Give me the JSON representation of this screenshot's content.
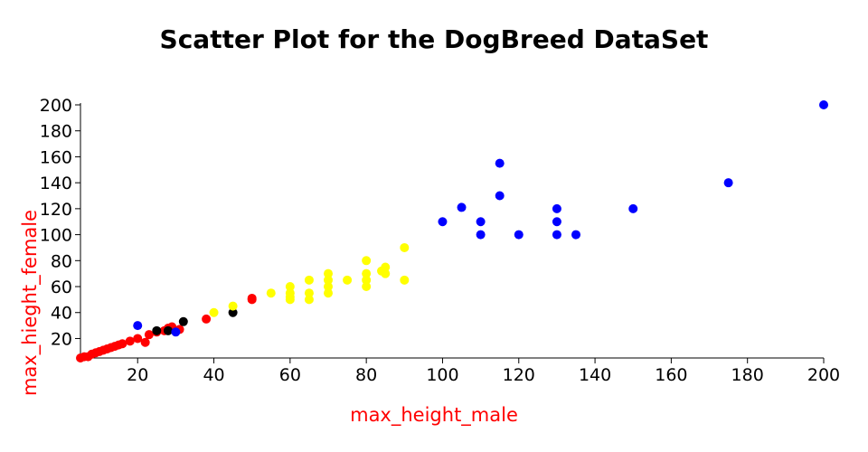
{
  "chart_data": {
    "type": "scatter",
    "title": "Scatter Plot for the DogBreed DataSet",
    "xlabel": "max_height_male",
    "ylabel": "max_hieght_female",
    "label_color": "#ff0000",
    "xlim": [
      5,
      200
    ],
    "ylim": [
      5,
      200
    ],
    "xticks": [
      20,
      40,
      60,
      80,
      100,
      120,
      140,
      160,
      180,
      200
    ],
    "yticks": [
      20,
      40,
      60,
      80,
      100,
      120,
      140,
      160,
      180,
      200
    ],
    "series": [
      {
        "name": "red",
        "color": "#ff0000",
        "points": [
          [
            5,
            5
          ],
          [
            6,
            6
          ],
          [
            7,
            6
          ],
          [
            8,
            8
          ],
          [
            9,
            9
          ],
          [
            10,
            10
          ],
          [
            11,
            11
          ],
          [
            12,
            12
          ],
          [
            13,
            13
          ],
          [
            14,
            14
          ],
          [
            15,
            15
          ],
          [
            16,
            16
          ],
          [
            18,
            18
          ],
          [
            20,
            20
          ],
          [
            23,
            23
          ],
          [
            22,
            17
          ],
          [
            25,
            25
          ],
          [
            27,
            26
          ],
          [
            28,
            28
          ],
          [
            29,
            29
          ],
          [
            31,
            27
          ],
          [
            38,
            35
          ],
          [
            50,
            50
          ],
          [
            50,
            51
          ]
        ]
      },
      {
        "name": "black",
        "color": "#000000",
        "points": [
          [
            25,
            26
          ],
          [
            28,
            26
          ],
          [
            32,
            33
          ],
          [
            45,
            40
          ]
        ]
      },
      {
        "name": "yellow",
        "color": "#ffff00",
        "points": [
          [
            40,
            40
          ],
          [
            45,
            45
          ],
          [
            55,
            55
          ],
          [
            60,
            50
          ],
          [
            60,
            52
          ],
          [
            60,
            55
          ],
          [
            60,
            60
          ],
          [
            65,
            50
          ],
          [
            65,
            55
          ],
          [
            65,
            65
          ],
          [
            70,
            55
          ],
          [
            70,
            60
          ],
          [
            70,
            65
          ],
          [
            70,
            70
          ],
          [
            75,
            65
          ],
          [
            80,
            60
          ],
          [
            80,
            65
          ],
          [
            80,
            70
          ],
          [
            80,
            80
          ],
          [
            84,
            72
          ],
          [
            85,
            70
          ],
          [
            85,
            75
          ],
          [
            90,
            65
          ],
          [
            90,
            90
          ]
        ]
      },
      {
        "name": "blue",
        "color": "#0000ff",
        "points": [
          [
            20,
            30
          ],
          [
            30,
            25
          ],
          [
            100,
            110
          ],
          [
            105,
            121
          ],
          [
            110,
            100
          ],
          [
            110,
            110
          ],
          [
            115,
            130
          ],
          [
            115,
            155
          ],
          [
            120,
            100
          ],
          [
            130,
            100
          ],
          [
            130,
            110
          ],
          [
            130,
            120
          ],
          [
            135,
            100
          ],
          [
            150,
            120
          ],
          [
            175,
            140
          ],
          [
            200,
            200
          ]
        ]
      }
    ]
  }
}
